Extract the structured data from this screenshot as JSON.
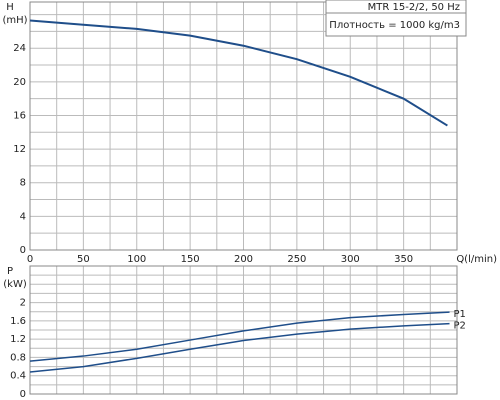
{
  "chart_data": [
    {
      "type": "line",
      "annotations": [
        "MTR 15-2/2, 50 Hz",
        "Плотность = 1000 kg/m3"
      ],
      "ylabel": [
        "H",
        "(mH)"
      ],
      "xlabel": "Q(l/min)",
      "x": [
        0,
        50,
        100,
        150,
        200,
        250,
        300,
        350,
        391
      ],
      "series": [
        {
          "name": "H",
          "color": "#1f4e8a",
          "values": [
            27.3,
            26.8,
            26.3,
            25.5,
            24.3,
            22.7,
            20.6,
            18.0,
            14.8
          ]
        }
      ],
      "xlim": [
        0,
        400
      ],
      "ylim": [
        0,
        29.5
      ],
      "xticks": [
        0,
        50,
        100,
        150,
        200,
        250,
        300,
        350
      ],
      "yticks": [
        0,
        4,
        8,
        12,
        16,
        20,
        24
      ],
      "xgrid": [
        25,
        75,
        125,
        175,
        225,
        275,
        325,
        375
      ],
      "ygrid": [
        2,
        6,
        10,
        14,
        18,
        22,
        26,
        28
      ]
    },
    {
      "type": "line",
      "ylabel": [
        "P",
        "(kW)"
      ],
      "x": [
        0,
        50,
        100,
        150,
        200,
        250,
        300,
        350,
        393
      ],
      "series": [
        {
          "name": "P1",
          "color": "#1f4e8a",
          "values": [
            0.72,
            0.83,
            0.98,
            1.18,
            1.38,
            1.55,
            1.67,
            1.74,
            1.79
          ]
        },
        {
          "name": "P2",
          "color": "#1f4e8a",
          "values": [
            0.48,
            0.6,
            0.78,
            0.98,
            1.17,
            1.31,
            1.42,
            1.49,
            1.54
          ]
        }
      ],
      "xlim": [
        0,
        400
      ],
      "ylim": [
        0,
        2.8
      ],
      "yticks": [
        0,
        0.4,
        0.8,
        1.2,
        1.6,
        2
      ],
      "xgrid": [
        25,
        50,
        75,
        100,
        125,
        150,
        175,
        200,
        225,
        250,
        275,
        300,
        325,
        350,
        375
      ],
      "ygrid": [
        0.2,
        0.6,
        1.0,
        1.4,
        1.8,
        2.2,
        2.4,
        2.6
      ]
    }
  ]
}
